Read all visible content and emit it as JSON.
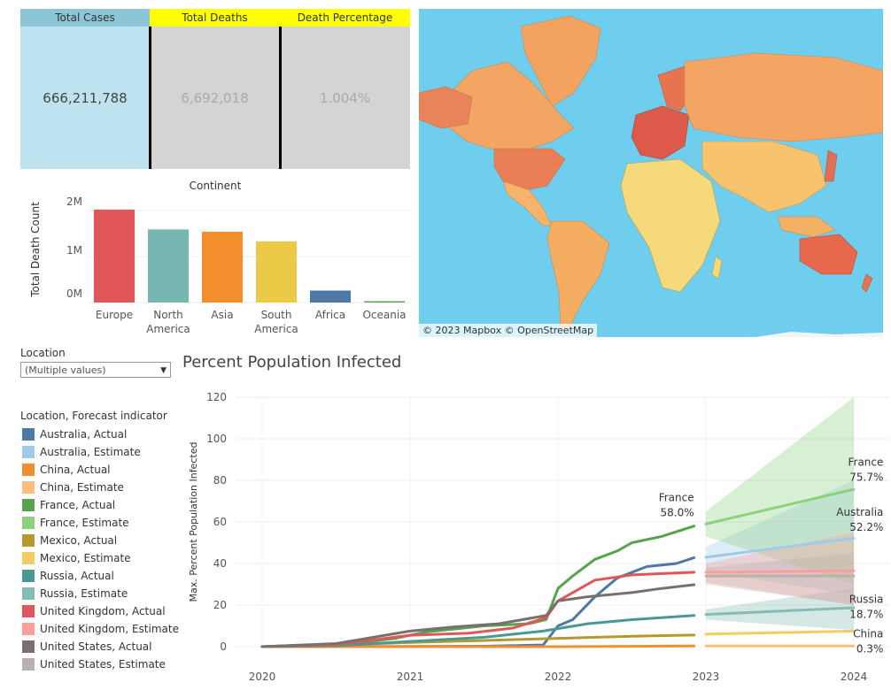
{
  "kpi": {
    "total_cases_label": "Total Cases",
    "total_cases_value": "666,211,788",
    "total_deaths_label": "Total Deaths",
    "total_deaths_value": "6,692,018",
    "death_pct_label": "Death Percentage",
    "death_pct_value": "1.004%",
    "colors": {
      "cases_head": "#8bc5d6",
      "cases_body": "#bde3f0",
      "deaths_head": "#ffff00",
      "body_gray": "#d4d4d4"
    }
  },
  "continent_chart": {
    "title": "Continent",
    "ylabel": "Total Death Count",
    "yticks": [
      "2M",
      "1M",
      "0M"
    ],
    "categories": [
      "Europe",
      "North America",
      "Asia",
      "South America",
      "Africa",
      "Oceania"
    ],
    "category_lines": [
      [
        "Europe"
      ],
      [
        "North",
        "America"
      ],
      [
        "Asia"
      ],
      [
        "South",
        "America"
      ],
      [
        "Africa"
      ],
      [
        "Oceania"
      ]
    ],
    "values": [
      2020000,
      1590000,
      1540000,
      1330000,
      260000,
      23000
    ],
    "colors": [
      "#e15759",
      "#76b7b2",
      "#f28e2b",
      "#edc948",
      "#4e79a7",
      "#59a14f"
    ]
  },
  "map": {
    "credit": "© 2023 Mapbox  © OpenStreetMap"
  },
  "filter": {
    "label": "Location",
    "value": "(Multiple values)"
  },
  "legend": {
    "title": "Location, Forecast indicator",
    "items": [
      {
        "label": "Australia, Actual",
        "color": "#4e79a7"
      },
      {
        "label": "Australia, Estimate",
        "color": "#a0cbe8"
      },
      {
        "label": "China, Actual",
        "color": "#f28e2b"
      },
      {
        "label": "China, Estimate",
        "color": "#ffbe7d"
      },
      {
        "label": "France, Actual",
        "color": "#59a14f"
      },
      {
        "label": "France, Estimate",
        "color": "#8cd17d"
      },
      {
        "label": "Mexico, Actual",
        "color": "#b6992d"
      },
      {
        "label": "Mexico, Estimate",
        "color": "#f1ce63"
      },
      {
        "label": "Russia, Actual",
        "color": "#499894"
      },
      {
        "label": "Russia, Estimate",
        "color": "#86bcb6"
      },
      {
        "label": "United Kingdom, Actual",
        "color": "#e15759"
      },
      {
        "label": "United Kingdom, Estimate",
        "color": "#ff9d9a"
      },
      {
        "label": "United States, Actual",
        "color": "#79706e"
      },
      {
        "label": "United States, Estimate",
        "color": "#bab0ac"
      }
    ]
  },
  "line_chart": {
    "title": "Percent Population Infected",
    "ylabel": "Max. Percent Population Infected",
    "yticks": [
      0,
      20,
      40,
      60,
      80,
      100,
      120
    ],
    "xticks": [
      "2020",
      "2021",
      "2022",
      "2023",
      "2024"
    ],
    "annotations": {
      "france_actual": {
        "name": "France",
        "value": "58.0%"
      },
      "france_est": {
        "name": "France",
        "value": "75.7%"
      },
      "australia_est": {
        "name": "Australia",
        "value": "52.2%"
      },
      "russia_est": {
        "name": "Russia",
        "value": "18.7%"
      },
      "china_est": {
        "name": "China",
        "value": "0.3%"
      }
    }
  },
  "chart_data": {
    "type": "line",
    "title": "Percent Population Infected",
    "xlabel": "",
    "ylabel": "Max. Percent Population Infected",
    "ylim": [
      0,
      120
    ],
    "xlim": [
      2020,
      2024
    ],
    "series": [
      {
        "name": "Australia, Actual",
        "color": "#4e79a7",
        "points": [
          [
            2020.0,
            0
          ],
          [
            2021.0,
            0.1
          ],
          [
            2021.5,
            0.2
          ],
          [
            2021.9,
            0.8
          ],
          [
            2022.0,
            10
          ],
          [
            2022.1,
            13
          ],
          [
            2022.25,
            24
          ],
          [
            2022.4,
            33
          ],
          [
            2022.6,
            38.5
          ],
          [
            2022.8,
            40
          ],
          [
            2022.92,
            42.8
          ]
        ]
      },
      {
        "name": "China, Actual",
        "color": "#f28e2b",
        "points": [
          [
            2020.0,
            0
          ],
          [
            2021.0,
            0
          ],
          [
            2022.0,
            0
          ],
          [
            2022.92,
            0.3
          ]
        ]
      },
      {
        "name": "France, Actual",
        "color": "#59a14f",
        "points": [
          [
            2020.0,
            0
          ],
          [
            2020.6,
            1.5
          ],
          [
            2020.9,
            4
          ],
          [
            2021.1,
            7
          ],
          [
            2021.5,
            10
          ],
          [
            2021.8,
            11
          ],
          [
            2021.92,
            13
          ],
          [
            2022.0,
            28
          ],
          [
            2022.1,
            34
          ],
          [
            2022.25,
            42
          ],
          [
            2022.4,
            46
          ],
          [
            2022.5,
            50
          ],
          [
            2022.7,
            53
          ],
          [
            2022.92,
            58
          ]
        ]
      },
      {
        "name": "Mexico, Actual",
        "color": "#b6992d",
        "points": [
          [
            2020.0,
            0
          ],
          [
            2020.5,
            0.8
          ],
          [
            2021.0,
            2
          ],
          [
            2021.5,
            3
          ],
          [
            2022.0,
            4
          ],
          [
            2022.5,
            5
          ],
          [
            2022.92,
            5.6
          ]
        ]
      },
      {
        "name": "Russia, Actual",
        "color": "#499894",
        "points": [
          [
            2020.0,
            0
          ],
          [
            2020.5,
            0.5
          ],
          [
            2021.0,
            2.5
          ],
          [
            2021.5,
            4.5
          ],
          [
            2021.9,
            7.5
          ],
          [
            2022.2,
            11
          ],
          [
            2022.5,
            13
          ],
          [
            2022.92,
            15
          ]
        ]
      },
      {
        "name": "United Kingdom, Actual",
        "color": "#e15759",
        "points": [
          [
            2020.0,
            0
          ],
          [
            2020.5,
            1
          ],
          [
            2021.0,
            5.5
          ],
          [
            2021.4,
            6.5
          ],
          [
            2021.7,
            9
          ],
          [
            2021.92,
            14
          ],
          [
            2022.0,
            22
          ],
          [
            2022.1,
            26
          ],
          [
            2022.25,
            32
          ],
          [
            2022.5,
            34.5
          ],
          [
            2022.92,
            35.8
          ]
        ]
      },
      {
        "name": "United States, Actual",
        "color": "#79706e",
        "points": [
          [
            2020.0,
            0
          ],
          [
            2020.5,
            1.5
          ],
          [
            2021.0,
            7.5
          ],
          [
            2021.3,
            9.5
          ],
          [
            2021.6,
            11
          ],
          [
            2021.92,
            15
          ],
          [
            2022.0,
            22
          ],
          [
            2022.2,
            24
          ],
          [
            2022.5,
            26
          ],
          [
            2022.7,
            28
          ],
          [
            2022.92,
            29.8
          ]
        ]
      },
      {
        "name": "Australia, Estimate",
        "color": "#a0cbe8",
        "points": [
          [
            2023.0,
            43
          ],
          [
            2024.0,
            52.2
          ]
        ],
        "band": [
          [
            2023.0,
            36,
            48
          ],
          [
            2024.0,
            25,
            80
          ]
        ]
      },
      {
        "name": "China, Estimate",
        "color": "#ffbe7d",
        "points": [
          [
            2023.0,
            0.3
          ],
          [
            2024.0,
            0.3
          ]
        ]
      },
      {
        "name": "France, Estimate",
        "color": "#8cd17d",
        "points": [
          [
            2023.0,
            59
          ],
          [
            2024.0,
            75.7
          ]
        ],
        "band": [
          [
            2023.0,
            53,
            65
          ],
          [
            2024.0,
            30,
            120
          ]
        ]
      },
      {
        "name": "Mexico, Estimate",
        "color": "#f1ce63",
        "points": [
          [
            2023.0,
            6
          ],
          [
            2024.0,
            7.5
          ]
        ]
      },
      {
        "name": "Russia, Estimate",
        "color": "#86bcb6",
        "points": [
          [
            2023.0,
            15.5
          ],
          [
            2024.0,
            18.7
          ]
        ],
        "band": [
          [
            2023.0,
            13,
            18
          ],
          [
            2024.0,
            8,
            28
          ]
        ]
      },
      {
        "name": "United Kingdom, Estimate",
        "color": "#ff9d9a",
        "points": [
          [
            2023.0,
            35.8
          ],
          [
            2024.0,
            36.5
          ]
        ],
        "band": [
          [
            2023.0,
            31,
            40
          ],
          [
            2024.0,
            20,
            55
          ]
        ]
      },
      {
        "name": "United States, Estimate",
        "color": "#bab0ac",
        "points": [
          [
            2023.0,
            34
          ],
          [
            2024.0,
            34
          ]
        ],
        "band": [
          [
            2023.0,
            30,
            38
          ],
          [
            2024.0,
            20,
            45
          ]
        ]
      }
    ]
  }
}
